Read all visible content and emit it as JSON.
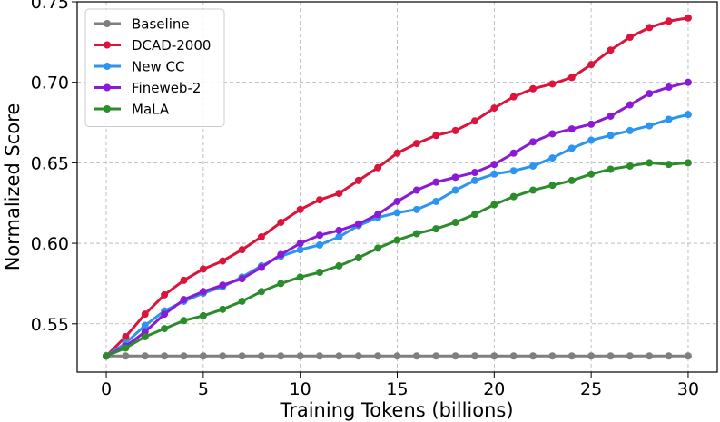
{
  "chart_data": {
    "type": "line",
    "title": "",
    "xlabel": "Training Tokens (billions)",
    "ylabel": "Normalized Score",
    "xlim": [
      -1.5,
      31.5
    ],
    "ylim": [
      0.52,
      0.75
    ],
    "xticks": [
      0,
      5,
      10,
      15,
      20,
      25,
      30
    ],
    "xtick_labels": [
      "0",
      "5",
      "10",
      "15",
      "20",
      "25",
      "30"
    ],
    "yticks": [
      0.55,
      0.6,
      0.65,
      0.7,
      0.75
    ],
    "ytick_labels": [
      "0.55",
      "0.60",
      "0.65",
      "0.70",
      "0.75"
    ],
    "grid": true,
    "legend_position": "top-left",
    "x": [
      0,
      1,
      2,
      3,
      4,
      5,
      6,
      7,
      8,
      9,
      10,
      11,
      12,
      13,
      14,
      15,
      16,
      17,
      18,
      19,
      20,
      21,
      22,
      23,
      24,
      25,
      26,
      27,
      28,
      29,
      30
    ],
    "series": [
      {
        "name": "Baseline",
        "color": "#7f7f7f",
        "values": [
          0.53,
          0.53,
          0.53,
          0.53,
          0.53,
          0.53,
          0.53,
          0.53,
          0.53,
          0.53,
          0.53,
          0.53,
          0.53,
          0.53,
          0.53,
          0.53,
          0.53,
          0.53,
          0.53,
          0.53,
          0.53,
          0.53,
          0.53,
          0.53,
          0.53,
          0.53,
          0.53,
          0.53,
          0.53,
          0.53,
          0.53
        ]
      },
      {
        "name": "DCAD-2000",
        "color": "#dc143c",
        "values": [
          0.53,
          0.542,
          0.556,
          0.568,
          0.577,
          0.584,
          0.589,
          0.596,
          0.604,
          0.613,
          0.621,
          0.627,
          0.631,
          0.639,
          0.647,
          0.656,
          0.662,
          0.667,
          0.67,
          0.676,
          0.684,
          0.691,
          0.696,
          0.699,
          0.703,
          0.711,
          0.72,
          0.728,
          0.734,
          0.738,
          0.74
        ]
      },
      {
        "name": "New CC",
        "color": "#2b95ef",
        "values": [
          0.53,
          0.538,
          0.549,
          0.558,
          0.564,
          0.569,
          0.573,
          0.579,
          0.586,
          0.592,
          0.596,
          0.599,
          0.604,
          0.611,
          0.616,
          0.619,
          0.621,
          0.626,
          0.633,
          0.639,
          0.643,
          0.645,
          0.648,
          0.653,
          0.659,
          0.664,
          0.667,
          0.67,
          0.673,
          0.677,
          0.68
        ]
      },
      {
        "name": "Fineweb-2",
        "color": "#8b1ad6",
        "values": [
          0.53,
          0.536,
          0.545,
          0.556,
          0.565,
          0.57,
          0.574,
          0.578,
          0.585,
          0.593,
          0.6,
          0.605,
          0.608,
          0.612,
          0.618,
          0.626,
          0.633,
          0.638,
          0.641,
          0.644,
          0.649,
          0.656,
          0.663,
          0.668,
          0.671,
          0.674,
          0.679,
          0.686,
          0.693,
          0.697,
          0.7
        ]
      },
      {
        "name": "MaLA",
        "color": "#2a8c2a",
        "values": [
          0.53,
          0.535,
          0.542,
          0.547,
          0.552,
          0.555,
          0.559,
          0.564,
          0.57,
          0.575,
          0.579,
          0.582,
          0.586,
          0.591,
          0.597,
          0.602,
          0.606,
          0.609,
          0.613,
          0.618,
          0.624,
          0.629,
          0.633,
          0.636,
          0.639,
          0.643,
          0.646,
          0.648,
          0.65,
          0.649,
          0.65
        ]
      }
    ]
  }
}
